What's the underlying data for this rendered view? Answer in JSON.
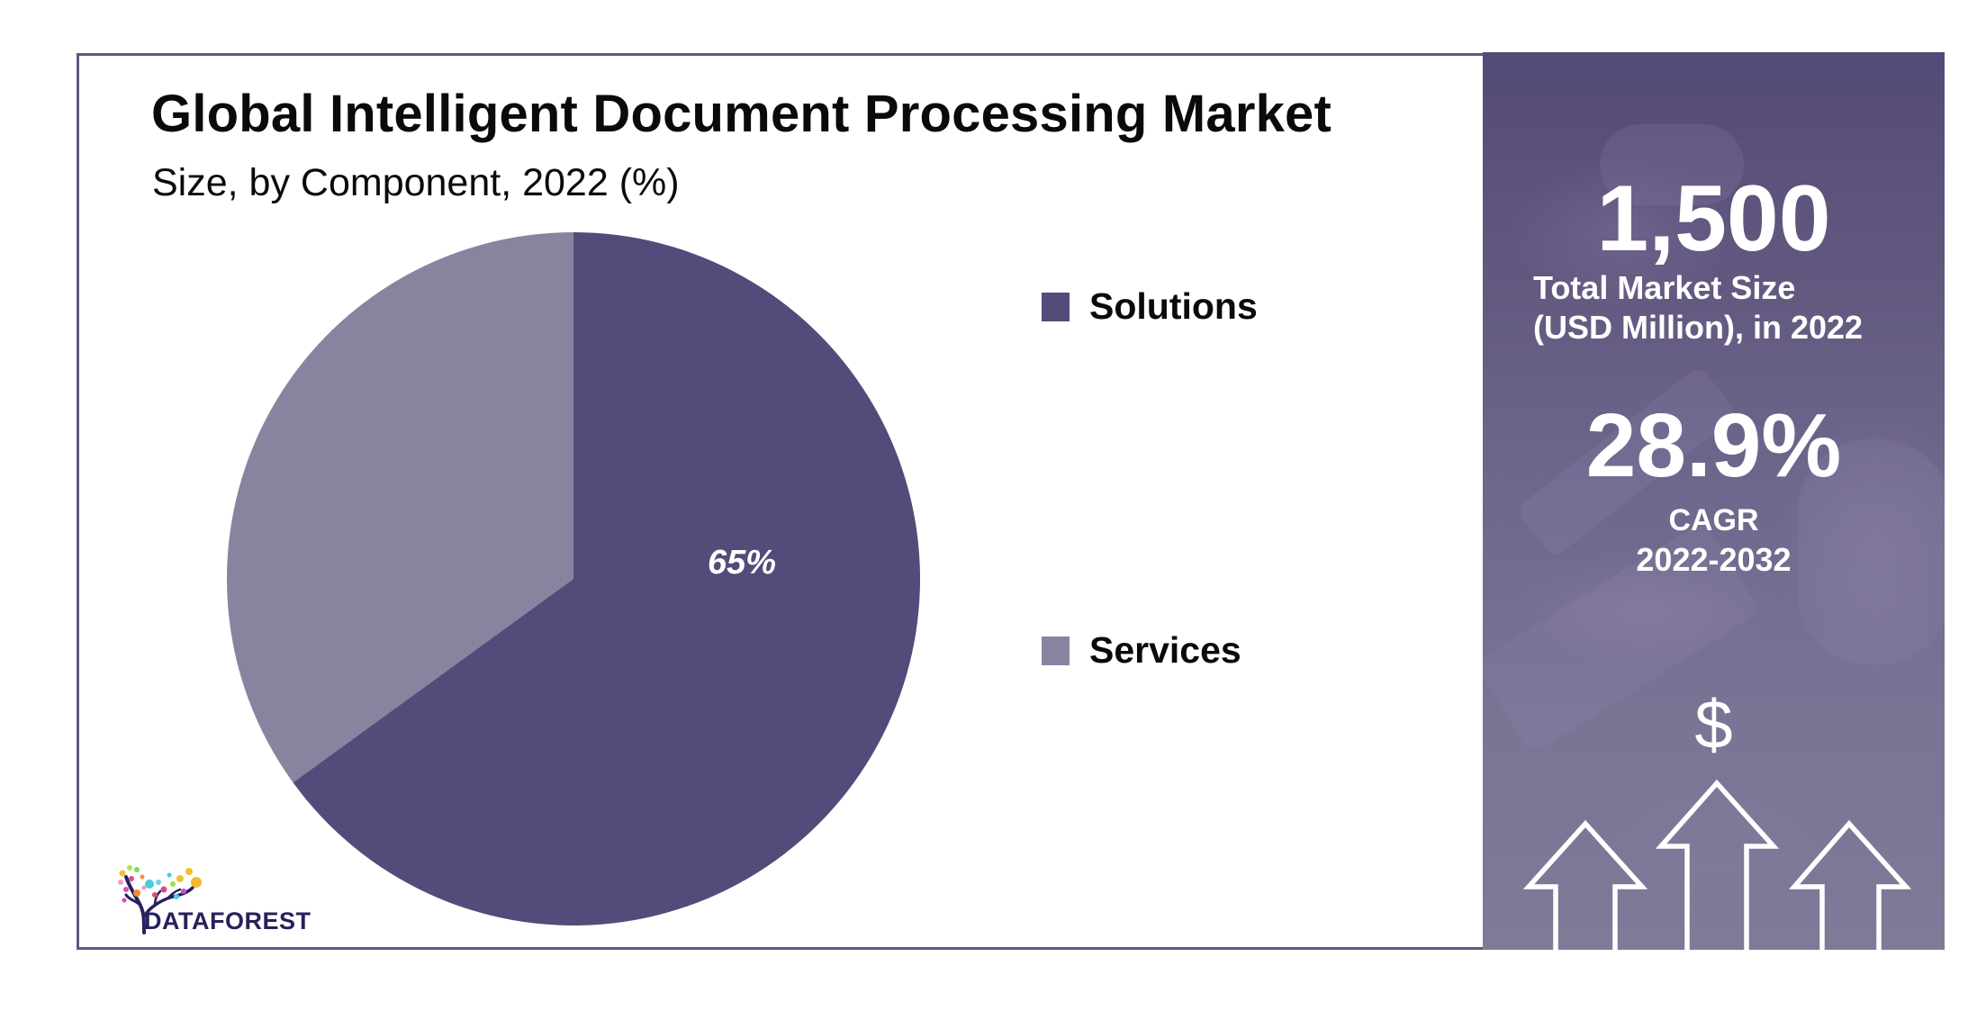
{
  "header": {
    "title": "Global Intelligent Document Processing Market",
    "subtitle": "Size, by Component, 2022 (%)"
  },
  "legend": {
    "items": [
      {
        "label": "Solutions",
        "color": "#534b79"
      },
      {
        "label": "Services",
        "color": "#8a83a0"
      }
    ]
  },
  "pie": {
    "slice_label": "65%"
  },
  "stats": {
    "market_size_value": "1,500",
    "market_size_label_line1": "Total Market Size",
    "market_size_label_line2": "(USD Million), in 2022",
    "cagr_value": "28.9%",
    "cagr_label": "CAGR",
    "cagr_period": "2022-2032",
    "icon": "dollar-sign-icon",
    "dollar_glyph": "$"
  },
  "branding": {
    "logo_text": "DATAFOREST"
  },
  "colors": {
    "solutions": "#534b79",
    "services": "#8a83a0",
    "frame_border": "#5c5782",
    "panel_top": "#544a77",
    "panel_bottom": "#7f7a98",
    "logo_text": "#27215c"
  },
  "chart_data": {
    "type": "pie",
    "title": "Global Intelligent Document Processing Market",
    "subtitle": "Size, by Component, 2022 (%)",
    "categories": [
      "Solutions",
      "Services"
    ],
    "values": [
      65,
      35
    ],
    "unit": "%",
    "data_labels": [
      "65%",
      ""
    ],
    "legend_position": "right",
    "start_angle_deg": 0,
    "direction": "clockwise",
    "colors": [
      "#534b79",
      "#8a83a0"
    ],
    "annotations": {
      "total_market_size_usd_million_2022": 1500,
      "cagr_2022_2032_percent": 28.9
    }
  }
}
